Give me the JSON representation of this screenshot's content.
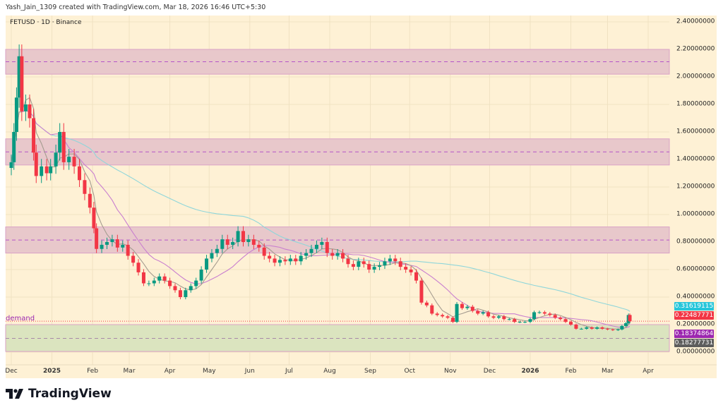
{
  "header": {
    "credit": "Yash_Jain_1309 created with TradingView.com, Mar 18, 2026 16:46 UTC+5:30",
    "symbol": "FETUSD · 1D · Binance"
  },
  "brand": {
    "name": "TradingView",
    "logo_icon": "tradingview-logo-icon"
  },
  "colors": {
    "background": "#fef1d5",
    "up": "#089981",
    "down": "#f23645",
    "zone_fill": "#e8c8cb",
    "zone_border": "#d9a2c6",
    "zone_midline": "#b455c8",
    "demand_fill": "#dbe4bf",
    "ma_short": "#a59c90",
    "ma_mid": "#c97fcf",
    "ma_long": "#8fd6da"
  },
  "chart_data": {
    "type": "candlestick",
    "title": "FETUSD · 1D · Binance",
    "ylim": [
      0,
      2.4
    ],
    "grid": true,
    "y_ticks": [
      "0.00000000",
      "0.20000000",
      "0.40000000",
      "0.60000000",
      "0.80000000",
      "1.00000000",
      "1.20000000",
      "1.40000000",
      "1.60000000",
      "1.80000000",
      "2.00000000",
      "2.20000000",
      "2.40000000"
    ],
    "x_ticks": [
      {
        "label": "Dec",
        "date": "2024-12-01",
        "year": false
      },
      {
        "label": "2025",
        "date": "2025-01-01",
        "year": true
      },
      {
        "label": "Feb",
        "date": "2025-02-01",
        "year": false
      },
      {
        "label": "Mar",
        "date": "2025-03-01",
        "year": false
      },
      {
        "label": "Apr",
        "date": "2025-04-01",
        "year": false
      },
      {
        "label": "May",
        "date": "2025-05-01",
        "year": false
      },
      {
        "label": "Jun",
        "date": "2025-06-01",
        "year": false
      },
      {
        "label": "Jul",
        "date": "2025-07-01",
        "year": false
      },
      {
        "label": "Aug",
        "date": "2025-08-01",
        "year": false
      },
      {
        "label": "Sep",
        "date": "2025-09-01",
        "year": false
      },
      {
        "label": "Oct",
        "date": "2025-10-01",
        "year": false
      },
      {
        "label": "Nov",
        "date": "2025-11-01",
        "year": false
      },
      {
        "label": "Dec",
        "date": "2025-12-01",
        "year": false
      },
      {
        "label": "2026",
        "date": "2026-01-01",
        "year": true
      },
      {
        "label": "Feb",
        "date": "2026-02-01",
        "year": false
      },
      {
        "label": "Mar",
        "date": "2026-03-01",
        "year": false
      },
      {
        "label": "Apr",
        "date": "2026-04-01",
        "year": false
      }
    ],
    "zones": [
      {
        "low": 2.02,
        "high": 2.2,
        "mid": 2.11,
        "type": "resistance"
      },
      {
        "low": 1.36,
        "high": 1.55,
        "mid": 1.455,
        "type": "resistance"
      },
      {
        "low": 0.72,
        "high": 0.91,
        "mid": 0.815,
        "type": "resistance"
      },
      {
        "low": 0.005,
        "high": 0.2,
        "mid": 0.1,
        "type": "demand",
        "label": "demand"
      }
    ],
    "price_tags": [
      {
        "value": "0.31619115",
        "color": "#26c6da"
      },
      {
        "value": "0.22487771",
        "color": "#f23645"
      },
      {
        "value": "0.18374864",
        "color": "#9c27b0"
      },
      {
        "value": "0.18277731",
        "color": "#5d5d5d"
      }
    ],
    "last_price": 0.22487771,
    "closes": [
      [
        "2024-12-01",
        1.38
      ],
      [
        "2024-12-03",
        1.6
      ],
      [
        "2024-12-05",
        1.85
      ],
      [
        "2024-12-07",
        2.15
      ],
      [
        "2024-12-09",
        1.75
      ],
      [
        "2024-12-12",
        1.8
      ],
      [
        "2024-12-15",
        1.7
      ],
      [
        "2024-12-18",
        1.45
      ],
      [
        "2024-12-20",
        1.28
      ],
      [
        "2024-12-24",
        1.35
      ],
      [
        "2024-12-28",
        1.3
      ],
      [
        "2024-12-31",
        1.35
      ],
      [
        "2025-01-04",
        1.45
      ],
      [
        "2025-01-07",
        1.6
      ],
      [
        "2025-01-10",
        1.38
      ],
      [
        "2025-01-14",
        1.42
      ],
      [
        "2025-01-18",
        1.35
      ],
      [
        "2025-01-22",
        1.25
      ],
      [
        "2025-01-26",
        1.15
      ],
      [
        "2025-01-30",
        1.05
      ],
      [
        "2025-02-02",
        0.9
      ],
      [
        "2025-02-04",
        0.75
      ],
      [
        "2025-02-08",
        0.78
      ],
      [
        "2025-02-12",
        0.8
      ],
      [
        "2025-02-16",
        0.82
      ],
      [
        "2025-02-20",
        0.76
      ],
      [
        "2025-02-24",
        0.78
      ],
      [
        "2025-02-28",
        0.7
      ],
      [
        "2025-03-04",
        0.65
      ],
      [
        "2025-03-08",
        0.58
      ],
      [
        "2025-03-12",
        0.5
      ],
      [
        "2025-03-16",
        0.5
      ],
      [
        "2025-03-20",
        0.52
      ],
      [
        "2025-03-24",
        0.55
      ],
      [
        "2025-03-28",
        0.52
      ],
      [
        "2025-04-01",
        0.48
      ],
      [
        "2025-04-05",
        0.45
      ],
      [
        "2025-04-09",
        0.4
      ],
      [
        "2025-04-13",
        0.45
      ],
      [
        "2025-04-17",
        0.48
      ],
      [
        "2025-04-21",
        0.52
      ],
      [
        "2025-04-25",
        0.6
      ],
      [
        "2025-04-29",
        0.68
      ],
      [
        "2025-05-03",
        0.72
      ],
      [
        "2025-05-07",
        0.75
      ],
      [
        "2025-05-11",
        0.82
      ],
      [
        "2025-05-15",
        0.78
      ],
      [
        "2025-05-19",
        0.8
      ],
      [
        "2025-05-23",
        0.88
      ],
      [
        "2025-05-27",
        0.8
      ],
      [
        "2025-05-31",
        0.82
      ],
      [
        "2025-06-04",
        0.78
      ],
      [
        "2025-06-08",
        0.76
      ],
      [
        "2025-06-12",
        0.7
      ],
      [
        "2025-06-16",
        0.68
      ],
      [
        "2025-06-20",
        0.65
      ],
      [
        "2025-06-24",
        0.67
      ],
      [
        "2025-06-28",
        0.66
      ],
      [
        "2025-07-02",
        0.68
      ],
      [
        "2025-07-06",
        0.66
      ],
      [
        "2025-07-10",
        0.7
      ],
      [
        "2025-07-14",
        0.72
      ],
      [
        "2025-07-18",
        0.75
      ],
      [
        "2025-07-22",
        0.78
      ],
      [
        "2025-07-26",
        0.8
      ],
      [
        "2025-07-30",
        0.72
      ],
      [
        "2025-08-03",
        0.7
      ],
      [
        "2025-08-07",
        0.72
      ],
      [
        "2025-08-11",
        0.68
      ],
      [
        "2025-08-15",
        0.64
      ],
      [
        "2025-08-19",
        0.62
      ],
      [
        "2025-08-23",
        0.66
      ],
      [
        "2025-08-27",
        0.64
      ],
      [
        "2025-08-31",
        0.6
      ],
      [
        "2025-09-04",
        0.62
      ],
      [
        "2025-09-08",
        0.63
      ],
      [
        "2025-09-12",
        0.66
      ],
      [
        "2025-09-16",
        0.68
      ],
      [
        "2025-09-20",
        0.66
      ],
      [
        "2025-09-24",
        0.62
      ],
      [
        "2025-09-28",
        0.6
      ],
      [
        "2025-10-02",
        0.58
      ],
      [
        "2025-10-06",
        0.52
      ],
      [
        "2025-10-10",
        0.36
      ],
      [
        "2025-10-14",
        0.34
      ],
      [
        "2025-10-18",
        0.28
      ],
      [
        "2025-10-22",
        0.27
      ],
      [
        "2025-10-26",
        0.26
      ],
      [
        "2025-10-30",
        0.25
      ],
      [
        "2025-11-03",
        0.22
      ],
      [
        "2025-11-06",
        0.35
      ],
      [
        "2025-11-10",
        0.32
      ],
      [
        "2025-11-14",
        0.33
      ],
      [
        "2025-11-18",
        0.3
      ],
      [
        "2025-11-22",
        0.28
      ],
      [
        "2025-11-26",
        0.29
      ],
      [
        "2025-11-30",
        0.26
      ],
      [
        "2025-12-04",
        0.25
      ],
      [
        "2025-12-08",
        0.26
      ],
      [
        "2025-12-12",
        0.24
      ],
      [
        "2025-12-16",
        0.24
      ],
      [
        "2025-12-20",
        0.22
      ],
      [
        "2025-12-24",
        0.22
      ],
      [
        "2025-12-28",
        0.22
      ],
      [
        "2026-01-01",
        0.24
      ],
      [
        "2026-01-04",
        0.29
      ],
      [
        "2026-01-08",
        0.29
      ],
      [
        "2026-01-12",
        0.28
      ],
      [
        "2026-01-16",
        0.27
      ],
      [
        "2026-01-20",
        0.25
      ],
      [
        "2026-01-24",
        0.24
      ],
      [
        "2026-01-28",
        0.22
      ],
      [
        "2026-02-01",
        0.2
      ],
      [
        "2026-02-05",
        0.17
      ],
      [
        "2026-02-09",
        0.17
      ],
      [
        "2026-02-13",
        0.18
      ],
      [
        "2026-02-17",
        0.17
      ],
      [
        "2026-02-21",
        0.18
      ],
      [
        "2026-02-25",
        0.17
      ],
      [
        "2026-03-01",
        0.165
      ],
      [
        "2026-03-05",
        0.16
      ],
      [
        "2026-03-09",
        0.165
      ],
      [
        "2026-03-12",
        0.19
      ],
      [
        "2026-03-15",
        0.21
      ],
      [
        "2026-03-17",
        0.27
      ],
      [
        "2026-03-18",
        0.225
      ]
    ]
  }
}
